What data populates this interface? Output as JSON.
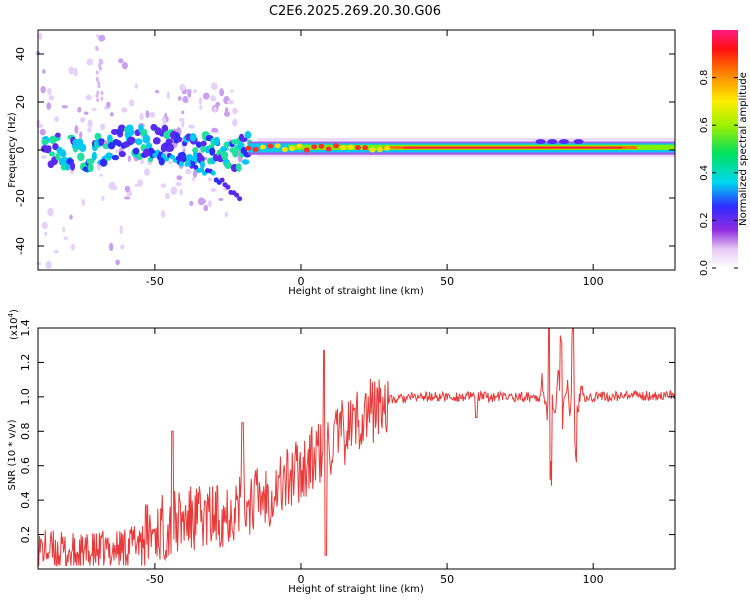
{
  "title": "C2E6.2025.269.20.30.G06",
  "chart_data": [
    {
      "id": "spectrogram",
      "type": "heatmap",
      "xlabel": "Height of straight line (km)",
      "ylabel": "Frequency (Hz)",
      "xlim": [
        -90,
        128
      ],
      "ylim": [
        -50,
        50
      ],
      "x_ticks": [
        -50,
        0,
        50,
        100
      ],
      "y_ticks": [
        -40,
        -20,
        0,
        20,
        40
      ],
      "ridge": [
        {
          "x": -86,
          "f": 0
        },
        {
          "x": -75,
          "f": -2
        },
        {
          "x": -65,
          "f": 2
        },
        {
          "x": -55,
          "f": 3
        },
        {
          "x": -45,
          "f": 2
        },
        {
          "x": -35,
          "f": 0
        },
        {
          "x": -25,
          "f": -2
        },
        {
          "x": -15,
          "f": 0
        },
        {
          "x": 0,
          "f": 1
        },
        {
          "x": 20,
          "f": 1
        },
        {
          "x": 60,
          "f": 1
        },
        {
          "x": 100,
          "f": 1
        },
        {
          "x": 128,
          "f": 1
        }
      ],
      "branch": [
        {
          "x": -50,
          "f": -2
        },
        {
          "x": -40,
          "f": -5
        },
        {
          "x": -30,
          "f": -10
        },
        {
          "x": -22,
          "f": -20
        }
      ]
    },
    {
      "id": "snr",
      "type": "line",
      "xlabel": "Height of straight line (km)",
      "ylabel": "SNR (10 * v/v)",
      "y_multiplier": "(x10",
      "y_multiplier_exp": "4",
      "xlim": [
        -90,
        128
      ],
      "ylim": [
        0,
        1.4
      ],
      "x_ticks": [
        -50,
        0,
        50,
        100
      ],
      "y_ticks": [
        0.2,
        0.4,
        0.6,
        0.8,
        1.0,
        1.2,
        1.4
      ],
      "y_tick_labels": [
        "0.2",
        "0.4",
        "0.6",
        "0.8",
        "1.0",
        "1.2",
        "1.4"
      ],
      "series_color": "#e83a3a",
      "trend": [
        {
          "x": -90,
          "y": 0.12
        },
        {
          "x": -75,
          "y": 0.08
        },
        {
          "x": -60,
          "y": 0.13
        },
        {
          "x": -50,
          "y": 0.22
        },
        {
          "x": -40,
          "y": 0.28
        },
        {
          "x": -30,
          "y": 0.3
        },
        {
          "x": -20,
          "y": 0.38
        },
        {
          "x": -10,
          "y": 0.45
        },
        {
          "x": 0,
          "y": 0.58
        },
        {
          "x": 10,
          "y": 0.72
        },
        {
          "x": 20,
          "y": 0.88
        },
        {
          "x": 30,
          "y": 0.98
        },
        {
          "x": 40,
          "y": 1.0
        },
        {
          "x": 60,
          "y": 1.0
        },
        {
          "x": 80,
          "y": 1.0
        },
        {
          "x": 100,
          "y": 1.0
        },
        {
          "x": 128,
          "y": 1.01
        }
      ],
      "spikes": [
        {
          "x": -44,
          "y": 0.8
        },
        {
          "x": -20,
          "y": 0.85
        },
        {
          "x": 8,
          "y": 1.27
        },
        {
          "x": 8.5,
          "y": 0.08
        },
        {
          "x": 85,
          "y": 1.4
        },
        {
          "x": 85.5,
          "y": 0.47
        },
        {
          "x": 89,
          "y": 1.35
        },
        {
          "x": 93,
          "y": 1.38
        },
        {
          "x": 94,
          "y": 0.62
        },
        {
          "x": 60,
          "y": 0.88
        }
      ]
    }
  ],
  "colorbar": {
    "label": "Normalized spectral amplitude",
    "ticks": [
      "0.0",
      "0.2",
      "0.4",
      "0.6",
      "0.8"
    ],
    "tick_values": [
      0.0,
      0.2,
      0.4,
      0.6,
      0.8
    ],
    "range": [
      0,
      1
    ]
  }
}
